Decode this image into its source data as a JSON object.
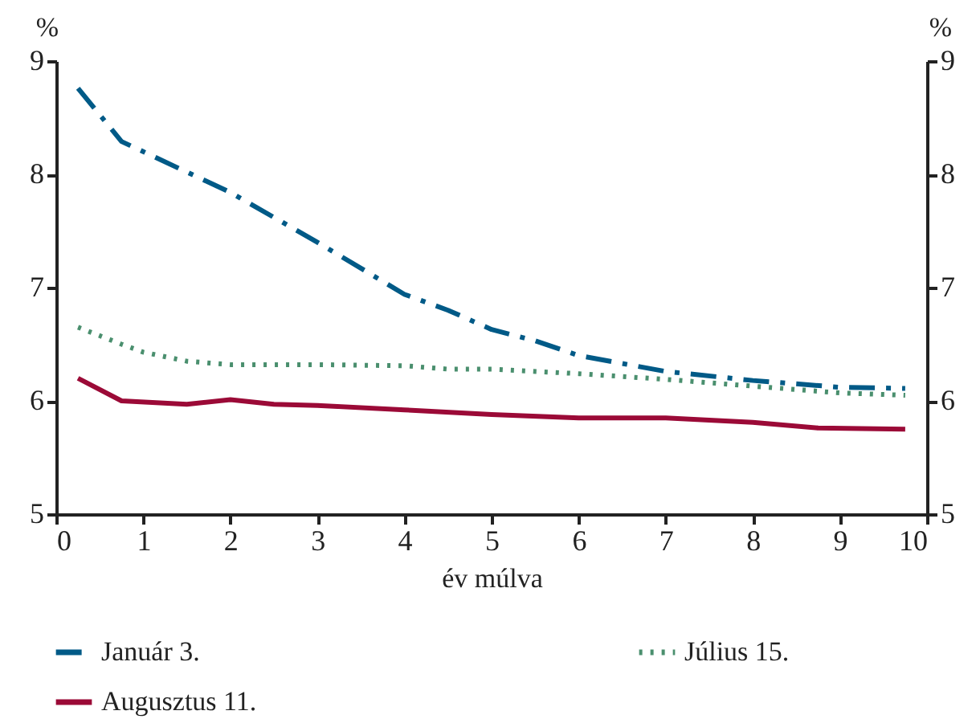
{
  "chart_data": {
    "type": "line",
    "xlabel": "év múlva",
    "ylabel": "%",
    "y2label": "%",
    "xlim": [
      0,
      10
    ],
    "xticks": [
      0,
      1,
      2,
      3,
      4,
      5,
      6,
      7,
      8,
      9,
      10
    ],
    "ylim": [
      5,
      9
    ],
    "yticks": [
      5,
      6,
      7,
      8,
      9
    ],
    "y2lim": [
      5,
      9
    ],
    "y2ticks": [
      5,
      6,
      7,
      8,
      9
    ],
    "legend": "bottom",
    "grid": false,
    "series": [
      {
        "name": "Január 3.",
        "color": "#005a87",
        "line_style": "dashdot",
        "x": [
          0.25,
          0.75,
          1,
          1.5,
          2,
          3,
          4,
          4.5,
          5,
          5.5,
          6,
          7,
          8,
          9,
          9.75
        ],
        "values": [
          8.76,
          8.29,
          8.2,
          8.02,
          7.84,
          7.4,
          6.94,
          6.8,
          6.63,
          6.53,
          6.4,
          6.26,
          6.18,
          6.12,
          6.11
        ]
      },
      {
        "name": "Július 15.",
        "color": "#4a8f6e",
        "line_style": "dotted",
        "x": [
          0.25,
          0.75,
          1,
          1.5,
          2,
          3,
          4,
          4.5,
          5,
          6,
          7,
          8,
          9,
          9.75
        ],
        "values": [
          6.65,
          6.5,
          6.43,
          6.35,
          6.32,
          6.32,
          6.31,
          6.28,
          6.28,
          6.24,
          6.19,
          6.13,
          6.07,
          6.05
        ]
      },
      {
        "name": "Augusztus 11.",
        "color": "#9b0a37",
        "line_style": "solid",
        "x": [
          0.25,
          0.75,
          1.5,
          2,
          2.5,
          3,
          4,
          5,
          6,
          7,
          8,
          8.75,
          9.75
        ],
        "values": [
          6.2,
          6.0,
          5.97,
          6.01,
          5.97,
          5.96,
          5.92,
          5.88,
          5.85,
          5.85,
          5.81,
          5.76,
          5.75
        ]
      }
    ]
  }
}
